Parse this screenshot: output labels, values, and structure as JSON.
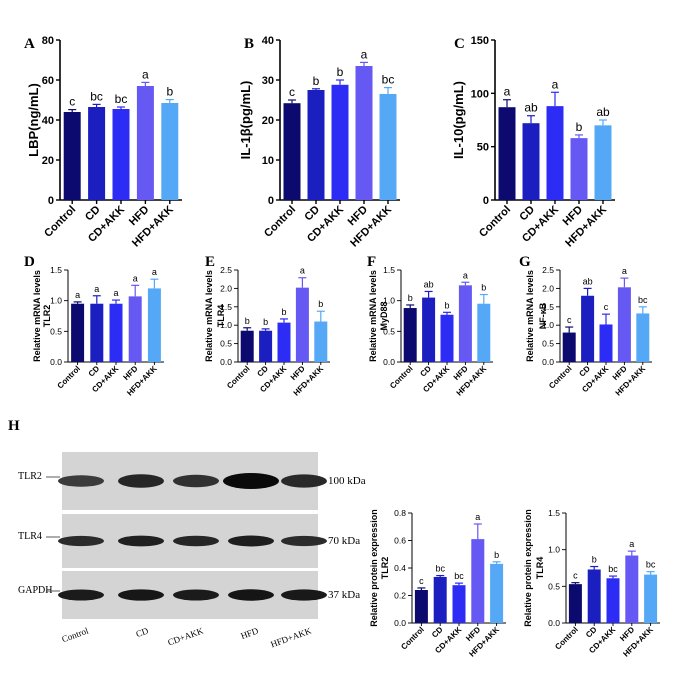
{
  "colors": [
    "#0c0a6f",
    "#1b1fbf",
    "#2c2cf5",
    "#6658f2",
    "#55a8f6"
  ],
  "groups": [
    "Control",
    "CD",
    "CD+AKK",
    "HFD",
    "HFD+AKK"
  ],
  "chart_data": [
    {
      "panel": "A",
      "type": "bar",
      "ylabel": "LBP(ng/mL)",
      "ylim": [
        0,
        80
      ],
      "yticks": [
        "0",
        "20",
        "40",
        "60",
        "80"
      ],
      "categories": [
        "Control",
        "CD",
        "CD+AKK",
        "HFD",
        "HFD+AKK"
      ],
      "values": [
        44,
        46.5,
        45.5,
        57,
        48.5
      ],
      "errors": [
        1.2,
        1.3,
        1,
        1.8,
        1.7
      ],
      "letters": [
        "c",
        "bc",
        "bc",
        "a",
        "b"
      ]
    },
    {
      "panel": "B",
      "type": "bar",
      "ylabel": "IL-1β(pg/mL)",
      "ylim": [
        0,
        40
      ],
      "yticks": [
        "0",
        "10",
        "20",
        "30",
        "40"
      ],
      "categories": [
        "Control",
        "CD",
        "CD+AKK",
        "HFD",
        "HFD+AKK"
      ],
      "values": [
        24.2,
        27.5,
        28.8,
        33.5,
        26.5
      ],
      "errors": [
        0.8,
        0.3,
        1.2,
        0.9,
        1.6
      ],
      "letters": [
        "c",
        "b",
        "b",
        "a",
        "bc"
      ]
    },
    {
      "panel": "C",
      "type": "bar",
      "ylabel": "IL-10(pg/mL)",
      "ylim": [
        0,
        150
      ],
      "yticks": [
        "0",
        "50",
        "100",
        "150"
      ],
      "categories": [
        "Control",
        "CD",
        "CD+AKK",
        "HFD",
        "HFD+AKK"
      ],
      "values": [
        87,
        72,
        88,
        58,
        70
      ],
      "errors": [
        7,
        7,
        13,
        3,
        5
      ],
      "letters": [
        "a",
        "ab",
        "a",
        "b",
        "ab"
      ]
    },
    {
      "panel": "D",
      "type": "bar",
      "ylabel": "TLR2",
      "ylabel2": "Relative mRNA levels",
      "ylim": [
        0,
        1.5
      ],
      "yticks": [
        "0.0",
        "0.5",
        "1.0",
        "1.5"
      ],
      "categories": [
        "Control",
        "CD",
        "CD+AKK",
        "HFD",
        "HFD+AKK"
      ],
      "values": [
        0.95,
        0.95,
        0.95,
        1.07,
        1.2
      ],
      "errors": [
        0.03,
        0.13,
        0.06,
        0.18,
        0.15
      ],
      "letters": [
        "a",
        "a",
        "a",
        "a",
        "a"
      ]
    },
    {
      "panel": "E",
      "type": "bar",
      "ylabel": "TLR4",
      "ylabel2": "Relative mRNA levels",
      "ylim": [
        0,
        2.5
      ],
      "yticks": [
        "0.0",
        "0.5",
        "1.0",
        "1.5",
        "2.0",
        "2.5"
      ],
      "categories": [
        "Control",
        "CD",
        "CD+AKK",
        "HFD",
        "HFD+AKK"
      ],
      "values": [
        0.85,
        0.85,
        1.07,
        2.02,
        1.1
      ],
      "errors": [
        0.08,
        0.05,
        0.1,
        0.27,
        0.28
      ],
      "letters": [
        "b",
        "b",
        "b",
        "a",
        "b"
      ]
    },
    {
      "panel": "F",
      "type": "bar",
      "ylabel": "MyD88",
      "ylabel2": "Relative mRNA levels",
      "ylim": [
        0,
        1.5
      ],
      "yticks": [
        "0.0",
        "0.5",
        "1.0",
        "1.5"
      ],
      "categories": [
        "Control",
        "CD",
        "CD+AKK",
        "HFD",
        "HFD+AKK"
      ],
      "values": [
        0.88,
        1.05,
        0.77,
        1.25,
        0.95
      ],
      "errors": [
        0.05,
        0.1,
        0.04,
        0.05,
        0.15
      ],
      "letters": [
        "b",
        "ab",
        "b",
        "a",
        "b"
      ]
    },
    {
      "panel": "G",
      "type": "bar",
      "ylabel": "NF-κB",
      "ylabel2": "Relative mRNA levels",
      "ylim": [
        0,
        2.5
      ],
      "yticks": [
        "0.0",
        "0.5",
        "1.0",
        "1.5",
        "2.0",
        "2.5"
      ],
      "categories": [
        "Control",
        "CD",
        "CD+AKK",
        "HFD",
        "HFD+AKK"
      ],
      "values": [
        0.8,
        1.8,
        1.02,
        2.03,
        1.32
      ],
      "errors": [
        0.15,
        0.2,
        0.28,
        0.25,
        0.18
      ],
      "letters": [
        "c",
        "ab",
        "c",
        "a",
        "bc"
      ]
    },
    {
      "panel": "H1",
      "type": "bar",
      "ylabel": "TLR2",
      "ylabel2": "Relative protein expression",
      "ylim": [
        0,
        0.8
      ],
      "yticks": [
        "0.0",
        "0.2",
        "0.4",
        "0.6",
        "0.8"
      ],
      "categories": [
        "Control",
        "CD",
        "CD+AKK",
        "HFD",
        "HFD+AKK"
      ],
      "values": [
        0.24,
        0.335,
        0.275,
        0.61,
        0.43
      ],
      "errors": [
        0.015,
        0.01,
        0.015,
        0.11,
        0.015
      ],
      "letters": [
        "c",
        "bc",
        "bc",
        "a",
        "b"
      ]
    },
    {
      "panel": "H2",
      "type": "bar",
      "ylabel": "TLR4",
      "ylabel2": "Relative protein expression",
      "ylim": [
        0,
        1.5
      ],
      "yticks": [
        "0.0",
        "0.5",
        "1.0",
        "1.5"
      ],
      "categories": [
        "Control",
        "CD",
        "CD+AKK",
        "HFD",
        "HFD+AKK"
      ],
      "values": [
        0.53,
        0.73,
        0.61,
        0.92,
        0.66
      ],
      "errors": [
        0.02,
        0.04,
        0.03,
        0.06,
        0.04
      ],
      "letters": [
        "c",
        "b",
        "bc",
        "a",
        "bc"
      ]
    }
  ],
  "blot": {
    "panel_letter": "H",
    "rows": [
      {
        "label": "TLR2",
        "size": "100 kDa",
        "intensity": [
          0.55,
          0.75,
          0.65,
          1.0,
          0.72
        ]
      },
      {
        "label": "TLR4",
        "size": "70 kDa",
        "intensity": [
          0.7,
          0.8,
          0.75,
          0.82,
          0.7
        ]
      },
      {
        "label": "GAPDH",
        "size": "37 kDa",
        "intensity": [
          0.85,
          0.88,
          0.85,
          0.9,
          0.86
        ]
      }
    ],
    "lanes": [
      "Control",
      "CD",
      "CD+AKK",
      "HFD",
      "HFD+AKK"
    ]
  }
}
